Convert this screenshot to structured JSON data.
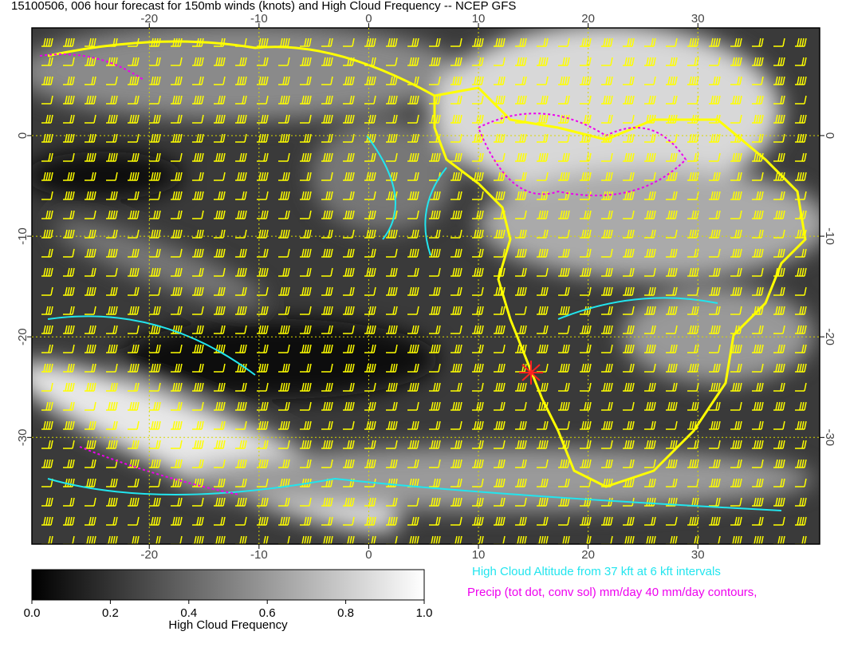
{
  "map": {
    "title": "15100506, 006 hour forecast for 150mb winds (knots) and High Cloud Frequency -- NCEP GFS",
    "xlim": [
      -30.7,
      41.1
    ],
    "ylim": [
      -40.6,
      10.7
    ],
    "xticks": [
      -20,
      -10,
      0,
      10,
      20,
      30
    ],
    "yticks": [
      0,
      -10,
      -20,
      -30
    ],
    "colorbar": {
      "label": "High Cloud Frequency",
      "lim": [
        0,
        1
      ],
      "ticks": [
        {
          "value": 0,
          "label": "0.0"
        },
        {
          "value": 0.2,
          "label": "0.2"
        },
        {
          "value": 0.4,
          "label": "0.4"
        },
        {
          "value": 0.6,
          "label": "0.6"
        },
        {
          "value": 0.8,
          "label": "0.8"
        },
        {
          "value": 1,
          "label": "1.0"
        }
      ]
    },
    "legend": [
      {
        "text": "High Cloud Altitude from 37 kft at 6 kft intervals",
        "color": "#22e5ee"
      },
      {
        "text": "Precip (tot dot, conv sol) mm/day 40 mm/day contours,",
        "color": "#ee00ee"
      }
    ]
  }
}
